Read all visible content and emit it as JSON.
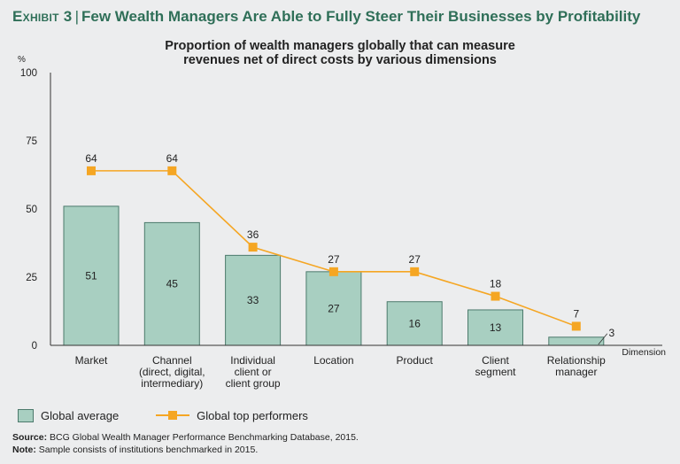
{
  "exhibit": {
    "label": "Exhibit 3",
    "separator": "|",
    "title": "Few Wealth Managers Are Able to Fully Steer Their Businesses by Profitability"
  },
  "chart_data": {
    "type": "bar",
    "title_lines": [
      "Proportion of wealth managers globally that can measure",
      "revenues net of direct costs by various dimensions"
    ],
    "y_unit": "%",
    "ylim": [
      0,
      100
    ],
    "yticks": [
      0,
      25,
      50,
      75,
      100
    ],
    "x_axis_label": "Dimension",
    "categories": [
      [
        "Market"
      ],
      [
        "Channel",
        "(direct, digital,",
        "intermediary)"
      ],
      [
        "Individual",
        "client or",
        "client group"
      ],
      [
        "Location"
      ],
      [
        "Product"
      ],
      [
        "Client",
        "segment"
      ],
      [
        "Relationship",
        "manager"
      ]
    ],
    "series": [
      {
        "name": "Global average",
        "type": "bar",
        "values": [
          51,
          45,
          33,
          27,
          16,
          13,
          3
        ]
      },
      {
        "name": "Global top performers",
        "type": "line",
        "values": [
          64,
          64,
          36,
          27,
          27,
          18,
          7
        ]
      }
    ],
    "colors": {
      "bar_fill": "#a8cfc1",
      "bar_stroke": "#4c7a6c",
      "line": "#f5a623",
      "axis": "#333333"
    }
  },
  "legend": {
    "bar_label": "Global average",
    "line_label": "Global top performers"
  },
  "footnotes": {
    "source_label": "Source:",
    "source_text": "BCG Global Wealth Manager Performance Benchmarking Database, 2015.",
    "note_label": "Note:",
    "note_text": "Sample consists of institutions benchmarked in 2015."
  }
}
